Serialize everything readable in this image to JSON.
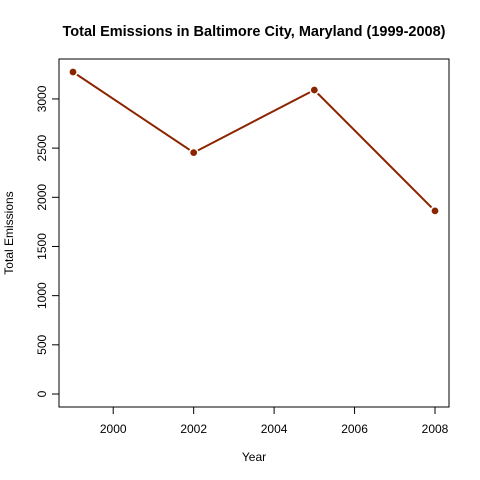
{
  "chart_data": {
    "type": "line",
    "title": "Total Emissions in Baltimore City, Maryland (1999-2008)",
    "xlabel": "Year",
    "ylabel": "Total Emissions",
    "x": [
      1999,
      2002,
      2005,
      2008
    ],
    "series": [
      {
        "values": [
          3274,
          2454,
          3091,
          1862
        ],
        "color": "#8B2500"
      }
    ],
    "xlim": [
      1999,
      2008
    ],
    "ylim": [
      0,
      3274
    ],
    "x_ticks": [
      2000,
      2002,
      2004,
      2006,
      2008
    ],
    "y_ticks": [
      0,
      500,
      1000,
      1500,
      2000,
      2500,
      3000
    ],
    "grid": false,
    "legend": "none",
    "point_style": "filled-circle-with-white-border"
  }
}
